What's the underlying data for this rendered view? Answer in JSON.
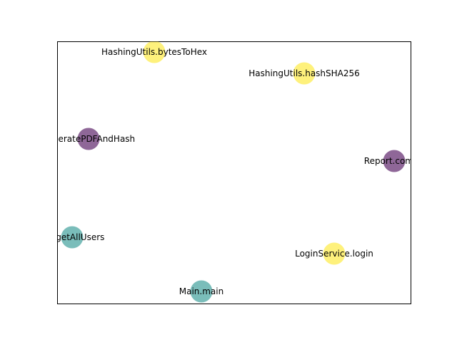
{
  "graph": {
    "nodes": [
      {
        "id": "bytesToHex",
        "label": "HashingUtils.bytesToHex",
        "color": "#fde725"
      },
      {
        "id": "hashSHA256",
        "label": "HashingUtils.hashSHA256",
        "color": "#fde725"
      },
      {
        "id": "generatePDF",
        "label": "generatePDFAndHash",
        "color": "#440154"
      },
      {
        "id": "reportCompute",
        "label": "Report.compu",
        "color": "#440154"
      },
      {
        "id": "getAllUsers",
        "label": "ger.getAllUsers",
        "color": "#21918c"
      },
      {
        "id": "login",
        "label": "LoginService.login",
        "color": "#fde725"
      },
      {
        "id": "main",
        "label": "Main.main",
        "color": "#21918c"
      }
    ]
  }
}
